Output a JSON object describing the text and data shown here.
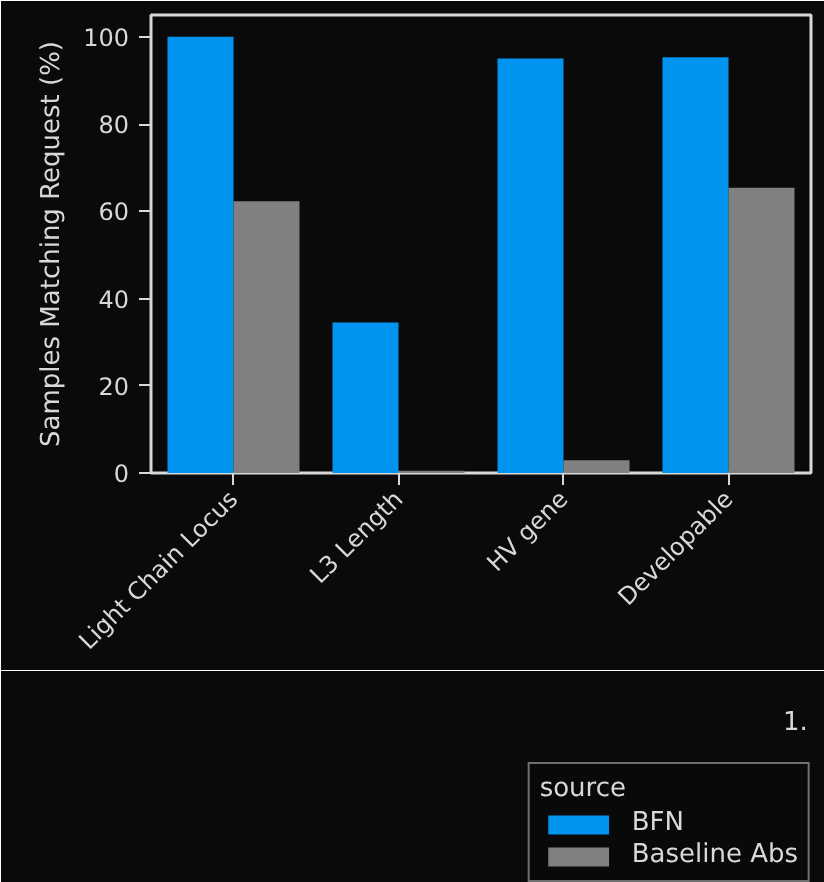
{
  "chart_data": {
    "type": "bar",
    "ylabel": "Samples Matching Request (%)",
    "legend_title": "source",
    "categories": [
      "Light Chain Locus",
      "L3 Length",
      "HV gene",
      "Developable"
    ],
    "series": [
      {
        "name": "BFN",
        "color": "#0094ee",
        "values": [
          100,
          34.5,
          95,
          95.3
        ]
      },
      {
        "name": "Baseline Abs",
        "color": "#808080",
        "values": [
          62.3,
          0.5,
          2.9,
          65.4
        ]
      }
    ],
    "ylim": [
      0,
      105
    ],
    "yticks": [
      0,
      20,
      40,
      60,
      80,
      100
    ],
    "grid": false,
    "legend": "bottom right",
    "annotations": [
      "1."
    ]
  }
}
